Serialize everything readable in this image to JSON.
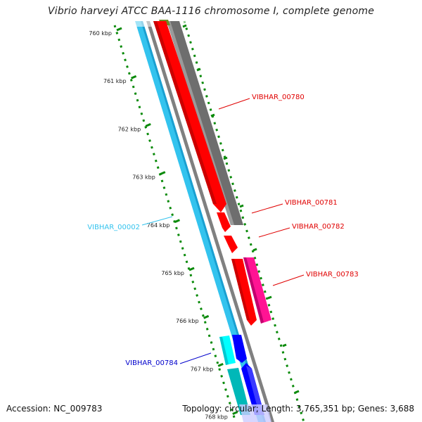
{
  "title": "Vibrio harveyi ATCC BAA-1116 chromosome I, complete genome",
  "footer": {
    "accession": "Accession: NC_009783",
    "summary": "Topology: circular; Length: 3,765,351 bp; Genes: 3,688"
  },
  "ruler": [
    "760 kbp",
    "761 kbp",
    "762 kbp",
    "763 kbp",
    "764 kbp",
    "765 kbp",
    "766 kbp",
    "767 kbp",
    "768 kbp"
  ],
  "features": [
    {
      "label": "VIBHAR_00780",
      "color": "#ff0000"
    },
    {
      "label": "VIBHAR_00781",
      "color": "#ff0000"
    },
    {
      "label": "VIBHAR_00782",
      "color": "#ff0000"
    },
    {
      "label": "VIBHAR_00783",
      "color": "#ff0000"
    },
    {
      "label": "VIBHAR_00002",
      "color": "#33ccee"
    },
    {
      "label": "VIBHAR_00784",
      "color": "#0000cc"
    }
  ],
  "colors": {
    "cds_red": "#ff0000",
    "rna_pink": "#ff1493",
    "gray_track": "#707070",
    "olive": "#6b8e23",
    "cyan_track": "#33c3ee",
    "cyan_bright": "#00ffff",
    "teal": "#00b8b8",
    "blue": "#0000ff",
    "tick_green": "#008000"
  }
}
